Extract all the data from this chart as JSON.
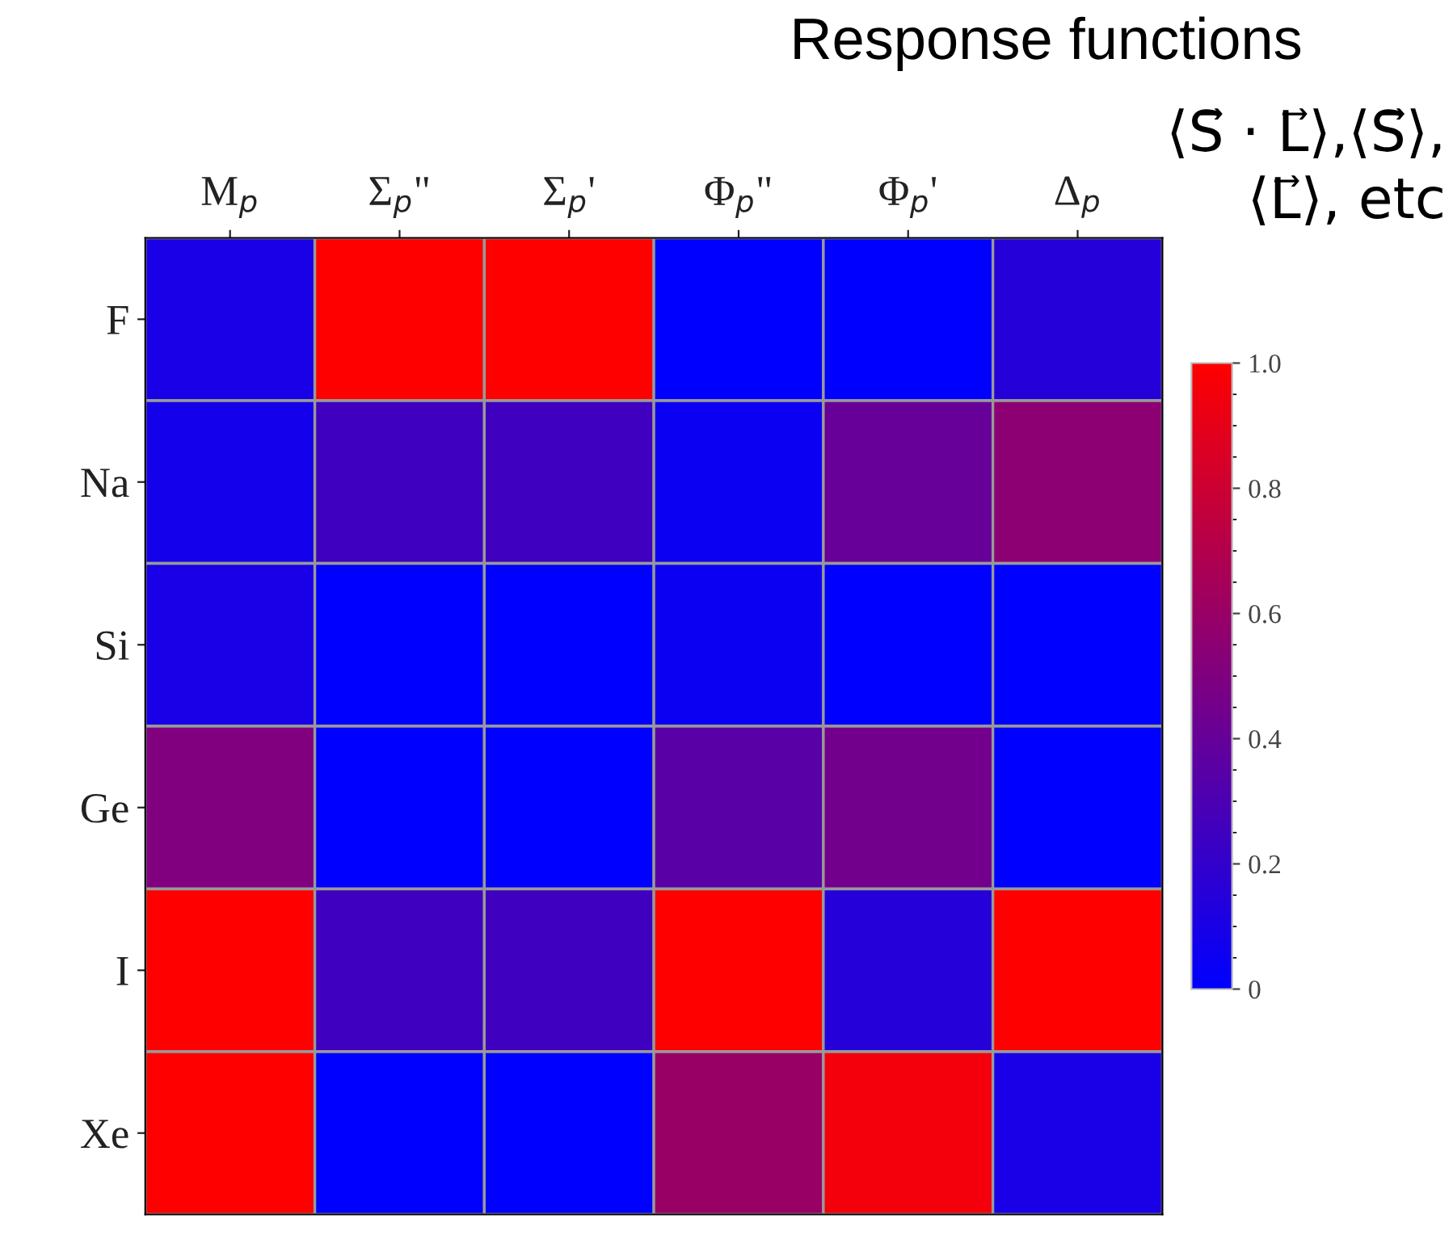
{
  "chart_data": {
    "type": "heatmap",
    "categories": [
      "M$_{p}$",
      "Σ$_{p}$\"",
      "Σ$_{p}$'",
      "Φ$_{p}$\"",
      "Φ$_{p}$'",
      "Δ$_{p}$"
    ],
    "y_categories": [
      "F",
      "Na",
      "Si",
      "Ge",
      "I",
      "Xe"
    ],
    "cells": [
      [
        0.1,
        1,
        1,
        0,
        0,
        0.15
      ],
      [
        0.08,
        0.25,
        0.25,
        0.05,
        0.4,
        0.55
      ],
      [
        0.1,
        0,
        0,
        0.05,
        0,
        0
      ],
      [
        0.5,
        0,
        0,
        0.35,
        0.45,
        0
      ],
      [
        1,
        0.25,
        0.25,
        1,
        0.15,
        1
      ],
      [
        1,
        0,
        0,
        0.6,
        0.95,
        0.1
      ]
    ],
    "clim": [
      0,
      1
    ],
    "cticks": [
      0,
      0.2,
      0.4,
      0.6,
      0.8,
      {
        "value": 1,
        "label": "1.0"
      }
    ],
    "annotations": [
      "Response functions",
      "⟨S⃗ · L⃗⟩,⟨S⃗⟩,\n⟨L⃗⟩, etc"
    ]
  }
}
